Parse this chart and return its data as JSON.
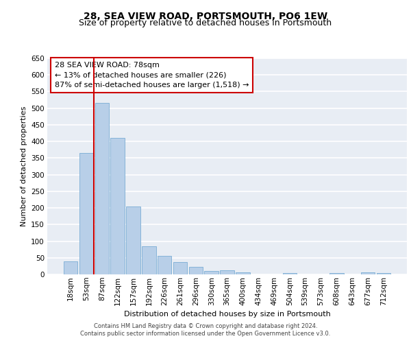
{
  "title": "28, SEA VIEW ROAD, PORTSMOUTH, PO6 1EW",
  "subtitle": "Size of property relative to detached houses in Portsmouth",
  "xlabel": "Distribution of detached houses by size in Portsmouth",
  "ylabel": "Number of detached properties",
  "bar_color": "#b8cfe8",
  "bar_edge_color": "#7aadd4",
  "annotation_line1": "28 SEA VIEW ROAD: 78sqm",
  "annotation_line2": "← 13% of detached houses are smaller (226)",
  "annotation_line3": "87% of semi-detached houses are larger (1,518) →",
  "vline_color": "#cc0000",
  "categories": [
    "18sqm",
    "53sqm",
    "87sqm",
    "122sqm",
    "157sqm",
    "192sqm",
    "226sqm",
    "261sqm",
    "296sqm",
    "330sqm",
    "365sqm",
    "400sqm",
    "434sqm",
    "469sqm",
    "504sqm",
    "539sqm",
    "573sqm",
    "608sqm",
    "643sqm",
    "677sqm",
    "712sqm"
  ],
  "values": [
    40,
    365,
    515,
    410,
    205,
    85,
    55,
    38,
    23,
    10,
    12,
    7,
    0,
    0,
    5,
    0,
    0,
    4,
    0,
    7,
    4
  ],
  "ylim": [
    0,
    650
  ],
  "yticks": [
    0,
    50,
    100,
    150,
    200,
    250,
    300,
    350,
    400,
    450,
    500,
    550,
    600,
    650
  ],
  "background_color": "#e8edf4",
  "grid_color": "#ffffff",
  "footer_line1": "Contains HM Land Registry data © Crown copyright and database right 2024.",
  "footer_line2": "Contains public sector information licensed under the Open Government Licence v3.0.",
  "title_fontsize": 10,
  "subtitle_fontsize": 9,
  "annotation_fontsize": 8,
  "axis_label_fontsize": 8,
  "tick_fontsize": 7.5,
  "footer_fontsize": 6
}
